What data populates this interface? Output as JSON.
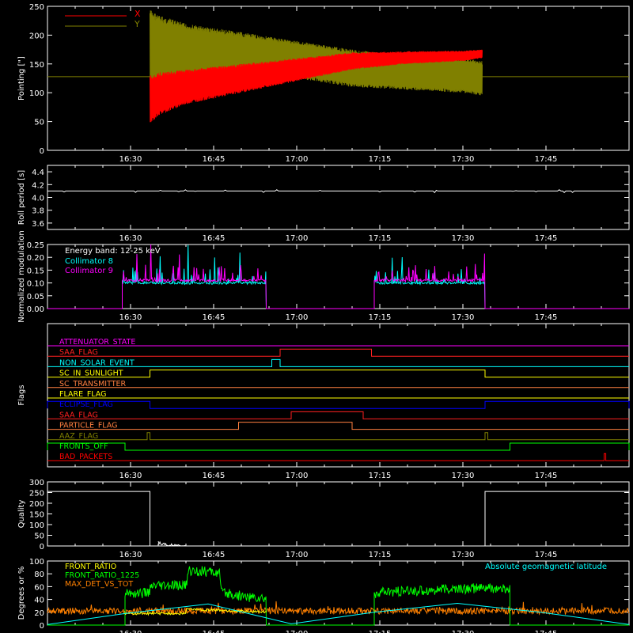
{
  "time_axis": {
    "ticks": [
      "16:30",
      "16:45",
      "17:00",
      "17:15",
      "17:30",
      "17:45"
    ],
    "tick_minutes": [
      990,
      1005,
      1020,
      1035,
      1050,
      1065
    ],
    "range_minutes": [
      975,
      1080
    ]
  },
  "chart_data": [
    {
      "type": "line",
      "panel": "pointing",
      "ylabel": "Pointing [\"]",
      "ylim": [
        0,
        250
      ],
      "yticks": [
        "0",
        "50",
        "100",
        "150",
        "200",
        "250"
      ],
      "legend_placement": "top-left",
      "series": [
        {
          "name": "X",
          "color": "#ff0000",
          "envelope": {
            "x": [
              993.5,
              995,
              1000,
              1010,
              1020,
              1030,
              1040,
              1050,
              1053.5
            ],
            "min": [
              45,
              60,
              80,
              100,
              120,
              140,
              150,
              155,
              160
            ],
            "max": [
              130,
              135,
              140,
              150,
              160,
              170,
              172,
              173,
              175
            ]
          }
        },
        {
          "name": "Y",
          "color": "#808000",
          "envelope": {
            "x": [
              993.5,
              995,
              1000,
              1010,
              1020,
              1030,
              1040,
              1050,
              1053.5
            ],
            "min": [
              105,
              110,
              115,
              120,
              125,
              110,
              105,
              100,
              95
            ],
            "max": [
              245,
              235,
              220,
              205,
              190,
              175,
              165,
              160,
              155
            ]
          }
        }
      ],
      "baseline": {
        "value": 128,
        "color": "#808000"
      }
    },
    {
      "type": "line",
      "panel": "roll",
      "ylabel": "Roll period [s]",
      "ylim": [
        3.5,
        4.5
      ],
      "yticks": [
        "3.6",
        "3.8",
        "4.0",
        "4.2",
        "4.4"
      ],
      "series": [
        {
          "name": "",
          "color": "#ffffff",
          "constant": 4.1,
          "x": [
            975,
            1080
          ]
        }
      ]
    },
    {
      "type": "line",
      "panel": "modulation",
      "ylabel": "Normalized modulation",
      "ylim": [
        0,
        0.25
      ],
      "yticks": [
        "0.00",
        "0.05",
        "0.10",
        "0.15",
        "0.20",
        "0.25"
      ],
      "annotation": "Energy band: 12-25 keV",
      "series": [
        {
          "name": "Collimator 8",
          "color": "#00ffff",
          "segments": [
            [
              988.5,
              1014.5
            ],
            [
              1034,
              1054
            ]
          ],
          "level": 0.1
        },
        {
          "name": "Collimator 9",
          "color": "#ff00ff",
          "segments": [
            [
              988.5,
              1014.5
            ],
            [
              1034,
              1054
            ]
          ],
          "level": 0.11
        }
      ]
    },
    {
      "type": "line",
      "panel": "flags",
      "ylabel": "Flags",
      "series": [
        {
          "name": "ATTENUATOR_STATE",
          "color": "#ff00ff",
          "high": []
        },
        {
          "name": "SAA_FLAG",
          "color": "#ff2020",
          "high": [
            [
              1017,
              1033.5
            ]
          ]
        },
        {
          "name": "NON_SOLAR_EVENT",
          "color": "#00ffff",
          "high": [
            [
              1015.5,
              1017
            ]
          ]
        },
        {
          "name": "SC_IN_SUNLIGHT",
          "color": "#ffff00",
          "high": [
            [
              993.5,
              1054
            ]
          ]
        },
        {
          "name": "SC_TRANSMITTER",
          "color": "#ff8040",
          "high": []
        },
        {
          "name": "FLARE_FLAG",
          "color": "#ffff00",
          "high": []
        },
        {
          "name": "ECLIPSE_FLAG",
          "color": "#0000ff",
          "high": [
            [
              975,
              993.5
            ],
            [
              1054,
              1080
            ]
          ]
        },
        {
          "name": "SAA_FLAG",
          "color": "#ff2020",
          "high": [
            [
              1019,
              1032
            ]
          ]
        },
        {
          "name": "PARTICLE_FLAG",
          "color": "#ff8040",
          "high": [
            [
              1009.5,
              1030
            ]
          ]
        },
        {
          "name": "AAZ_FLAG",
          "color": "#808000",
          "high": [
            [
              993,
              993.5
            ],
            [
              1054,
              1054.5
            ]
          ]
        },
        {
          "name": "FRONTS_OFF",
          "color": "#00ff00",
          "high": [
            [
              975,
              989
            ],
            [
              1058.5,
              1080
            ]
          ]
        },
        {
          "name": "BAD_PACKETS",
          "color": "#ff0000",
          "high": [
            [
              1075.5,
              1075.8
            ]
          ]
        }
      ]
    },
    {
      "type": "line",
      "panel": "quality",
      "ylabel": "Quality",
      "ylim": [
        0,
        300
      ],
      "yticks": [
        "0",
        "50",
        "100",
        "150",
        "200",
        "250",
        "300"
      ],
      "series": [
        {
          "name": "",
          "color": "#ffffff",
          "x": [
            975,
            993.5,
            993.5,
            1054,
            1054,
            1080
          ],
          "y": [
            255,
            255,
            0,
            0,
            255,
            255
          ]
        }
      ]
    },
    {
      "type": "line",
      "panel": "geo",
      "ylabel": "Degrees or %",
      "ylim": [
        0,
        100
      ],
      "yticks": [
        "0",
        "20",
        "40",
        "60",
        "80",
        "100"
      ],
      "series": [
        {
          "name": "FRONT_RATIO",
          "color": "#ffff00",
          "x": [
            989,
            1000,
            1000,
            1014.5
          ],
          "y": [
            18,
            18,
            25,
            20
          ]
        },
        {
          "name": "FRONT_RATIO_1225",
          "color": "#00ff00",
          "x": [
            989,
            993,
            994,
            1000,
            1000.5,
            1006,
            1006.5,
            1014.5,
            1034,
            1045,
            1054,
            1058.5
          ],
          "y": [
            50,
            50,
            60,
            62,
            85,
            82,
            50,
            40,
            50,
            55,
            58,
            55
          ]
        },
        {
          "name": "MAX_DET_VS_TOT",
          "color": "#ff8000",
          "constant": 22,
          "x": [
            975,
            1080
          ]
        },
        {
          "name": "Absolute geomagnetic latitude",
          "color": "#00ffff",
          "x": [
            975,
            989,
            1004,
            1019,
            1034,
            1049,
            1064,
            1080
          ],
          "y": [
            1,
            18,
            33,
            2,
            20,
            34,
            20,
            1
          ]
        }
      ]
    }
  ]
}
